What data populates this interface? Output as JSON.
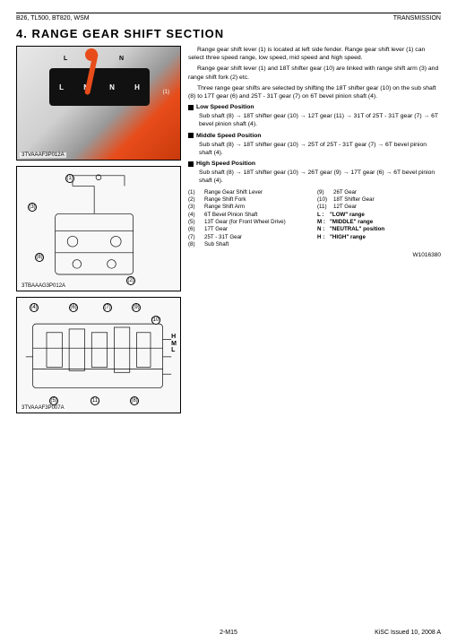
{
  "header": {
    "left": "B26, TL500, BT820, WSM",
    "right": "TRANSMISSION"
  },
  "section": {
    "number": "4.",
    "title": "RANGE  GEAR  SHIFT  SECTION"
  },
  "figures": {
    "fig1": {
      "id": "3TVAAAF3P012A",
      "panel": {
        "L": "L",
        "M": "M",
        "N": "N",
        "H": "H"
      },
      "callout1": "(1)"
    },
    "fig2": {
      "id": "3TBAAAG3P012A",
      "c": {
        "a": "(1)",
        "b": "(3)",
        "c": "(8)",
        "d": "(2)"
      }
    },
    "fig3": {
      "id": "3TVAAAF3P007A",
      "c": {
        "a": "(4)",
        "b": "(6)",
        "c": "(5)",
        "d": "(7)",
        "e": "(9)",
        "f": "(10)",
        "g": "(11)",
        "h": "(8)"
      },
      "side": {
        "H": "H",
        "M": "M",
        "L": "L"
      }
    }
  },
  "text": {
    "p1": "Range gear shift lever (1) is located at left side fender. Range gear shift lever (1) can select three speed range, low speed, mid speed and high speed.",
    "p2": "Range gear shift lever (1) and 18T shifter gear (10) are linked with range shift arm (3) and range shift fork (2) etc.",
    "p3": "Three range gear shifts are selected by shifting the 18T shifter gear (10) on the sub shaft (8) to 17T gear (6) and 25T - 31T gear (7) on 6T bevel pinion shaft (4).",
    "lowHead": "Low Speed Position",
    "low": "Sub shaft (8) → 18T shifter gear (10) → 12T gear (11) → 31T of 25T - 31T gear (7) → 6T bevel pinion shaft (4).",
    "midHead": "Middle Speed Position",
    "mid": "Sub shaft (8) → 18T shifter gear (10) → 25T of 25T - 31T gear (7) → 6T bevel pinion shaft (4).",
    "highHead": "High Speed Position",
    "high": "Sub shaft (8) → 18T shifter gear (10) → 26T gear (9) → 17T gear (6) → 6T bevel pinion shaft (4)."
  },
  "parts": {
    "left": [
      {
        "n": "(1)",
        "t": "Range Gear Shift Lever"
      },
      {
        "n": "(2)",
        "t": "Range Shift Fork"
      },
      {
        "n": "(3)",
        "t": "Range Shift Arm"
      },
      {
        "n": "(4)",
        "t": "6T Bevel Pinion Shaft"
      },
      {
        "n": "(5)",
        "t": "13T Gear (for Front Wheel Drive)"
      },
      {
        "n": "(6)",
        "t": "17T Gear"
      },
      {
        "n": "(7)",
        "t": "25T - 31T Gear"
      },
      {
        "n": "(8)",
        "t": "Sub Shaft"
      }
    ],
    "right": [
      {
        "n": "(9)",
        "t": "26T Gear"
      },
      {
        "n": "(10)",
        "t": "18T Shifter Gear"
      },
      {
        "n": "(11)",
        "t": "12T Gear"
      },
      {
        "n": "",
        "t": ""
      },
      {
        "n": "L :",
        "t": "\"LOW\" range"
      },
      {
        "n": "M :",
        "t": "\"MIDDLE\" range"
      },
      {
        "n": "N :",
        "t": "\"NEUTRAL\" position"
      },
      {
        "n": "H :",
        "t": "\"HIGH\" range"
      }
    ]
  },
  "wnum": "W1016380",
  "footer": {
    "page": "2-M15",
    "issued": "KiSC Issued 10, 2008 A"
  }
}
